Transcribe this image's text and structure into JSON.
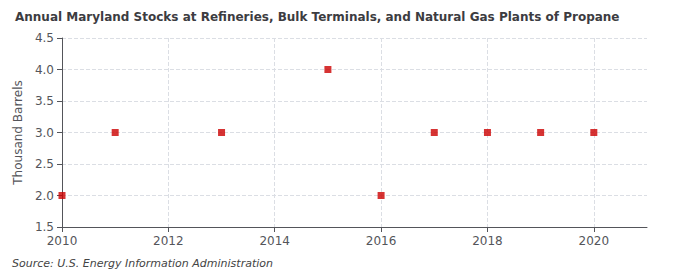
{
  "chart_data": {
    "type": "scatter",
    "title": "Annual Maryland Stocks at Refineries, Bulk Terminals, and Natural Gas Plants of Propane",
    "ylabel": "Thousand Barrels",
    "annotations": [
      "Source: U.S. Energy Information Administration"
    ],
    "x": [
      2010,
      2011,
      2013,
      2015,
      2016,
      2017,
      2018,
      2019,
      2020
    ],
    "values": [
      2.0,
      3.0,
      3.0,
      4.0,
      2.0,
      3.0,
      3.0,
      3.0,
      3.0
    ],
    "color": "#cc0000",
    "marker": "square",
    "xlim": [
      2010,
      2021
    ],
    "xticks": [
      2010,
      2012,
      2014,
      2016,
      2018,
      2020
    ],
    "ylim": [
      1.5,
      4.5
    ],
    "yticks": [
      1.5,
      {
        "value": 2.0,
        "label": "2.0"
      },
      2.5,
      {
        "value": 3.0,
        "label": "3.0"
      },
      3.5,
      {
        "value": 4.0,
        "label": "4.0"
      },
      4.5
    ],
    "grid": true
  }
}
